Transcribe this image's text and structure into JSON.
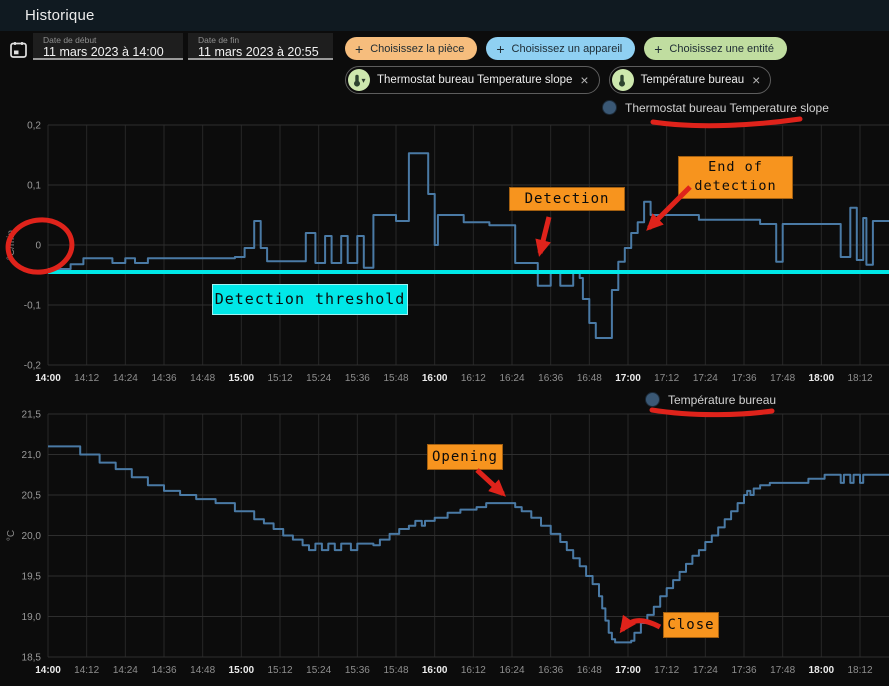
{
  "header": {
    "title": "Historique"
  },
  "filters": {
    "date_start": {
      "label": "Date de début",
      "value": "11 mars 2023 à 14:00"
    },
    "date_end": {
      "label": "Date de fin",
      "value": "11 mars 2023 à 20:55"
    },
    "add_chips": [
      {
        "label": "Choisissez la pièce",
        "color": "#f6bd7d"
      },
      {
        "label": "Choisissez un appareil",
        "color": "#8fd0f2"
      },
      {
        "label": "Choisissez une entité",
        "color": "#c0dda0"
      }
    ],
    "entity_chips": [
      {
        "label": "Thermostat bureau Temperature slope",
        "icon": "thermometer-icon",
        "close": "×"
      },
      {
        "label": "Température bureau",
        "icon": "thermometer-icon",
        "close": "×"
      }
    ]
  },
  "annotations": {
    "detection": "Detection",
    "end_of_detection": {
      "line1": "End of",
      "line2": "detection"
    },
    "threshold_label": "Detection threshold",
    "opening": "Opening",
    "close": "Close"
  },
  "colors": {
    "annotation_orange": "#f7941e",
    "annotation_cyan": "#00e8e8",
    "annotation_red": "#df231b",
    "series_blue": "#4a7aa5",
    "header_bg": "#101a21"
  },
  "chart_data": [
    {
      "type": "line",
      "step": true,
      "legend": "Thermostat bureau Temperature slope",
      "ylabel": "°C/min",
      "ylim": [
        -0.2,
        0.2
      ],
      "grid": true,
      "y_ticks": [
        {
          "v": 0.2,
          "label": "0,2"
        },
        {
          "v": 0.1,
          "label": "0,1"
        },
        {
          "v": 0.0,
          "label": "0"
        },
        {
          "v": -0.1,
          "label": "-0,1"
        },
        {
          "v": -0.2,
          "label": "-0,2"
        }
      ],
      "x_ticks": [
        {
          "t": 0,
          "label": "14:00"
        },
        {
          "t": 12,
          "label": "14:12"
        },
        {
          "t": 24,
          "label": "14:24"
        },
        {
          "t": 36,
          "label": "14:36"
        },
        {
          "t": 48,
          "label": "14:48"
        },
        {
          "t": 60,
          "label": "15:00"
        },
        {
          "t": 72,
          "label": "15:12"
        },
        {
          "t": 84,
          "label": "15:24"
        },
        {
          "t": 96,
          "label": "15:36"
        },
        {
          "t": 108,
          "label": "15:48"
        },
        {
          "t": 120,
          "label": "16:00"
        },
        {
          "t": 132,
          "label": "16:12"
        },
        {
          "t": 144,
          "label": "16:24"
        },
        {
          "t": 156,
          "label": "16:36"
        },
        {
          "t": 168,
          "label": "16:48"
        },
        {
          "t": 180,
          "label": "17:00"
        },
        {
          "t": 192,
          "label": "17:12"
        },
        {
          "t": 204,
          "label": "17:24"
        },
        {
          "t": 216,
          "label": "17:36"
        },
        {
          "t": 228,
          "label": "17:48"
        },
        {
          "t": 240,
          "label": "18:00"
        },
        {
          "t": 252,
          "label": "18:12"
        }
      ],
      "threshold": {
        "value": -0.045,
        "color": "#00e8e8",
        "name": "detection-threshold"
      },
      "series": [
        {
          "name": "Thermostat bureau Temperature slope",
          "color": "#4a7aa5",
          "points": [
            [
              0,
              -0.04
            ],
            [
              7,
              -0.032
            ],
            [
              11,
              -0.022
            ],
            [
              20,
              -0.03
            ],
            [
              24,
              -0.022
            ],
            [
              27,
              -0.03
            ],
            [
              31,
              -0.022
            ],
            [
              58,
              -0.02
            ],
            [
              61,
              -0.005
            ],
            [
              64,
              0.04
            ],
            [
              66,
              -0.005
            ],
            [
              68,
              -0.027
            ],
            [
              78,
              -0.027
            ],
            [
              80,
              0.02
            ],
            [
              83,
              -0.03
            ],
            [
              86,
              0.015
            ],
            [
              88,
              -0.03
            ],
            [
              91,
              0.015
            ],
            [
              93,
              -0.03
            ],
            [
              96,
              0.015
            ],
            [
              98,
              -0.038
            ],
            [
              101,
              0.05
            ],
            [
              108,
              0.04
            ],
            [
              112,
              0.153
            ],
            [
              118,
              0.085
            ],
            [
              120,
              0.0
            ],
            [
              121,
              0.05
            ],
            [
              129,
              0.038
            ],
            [
              137,
              0.033
            ],
            [
              145,
              -0.03
            ],
            [
              152,
              -0.068
            ],
            [
              156,
              -0.045
            ],
            [
              159,
              -0.068
            ],
            [
              163,
              -0.045
            ],
            [
              165,
              -0.055
            ],
            [
              166,
              -0.09
            ],
            [
              168,
              -0.13
            ],
            [
              170,
              -0.155
            ],
            [
              175,
              -0.075
            ],
            [
              177,
              -0.028
            ],
            [
              179,
              -0.005
            ],
            [
              181,
              0.02
            ],
            [
              183,
              0.038
            ],
            [
              185,
              0.072
            ],
            [
              187,
              0.05
            ],
            [
              202,
              0.042
            ],
            [
              221,
              0.035
            ],
            [
              226,
              -0.028
            ],
            [
              228,
              0.035
            ],
            [
              246,
              -0.02
            ],
            [
              249,
              0.062
            ],
            [
              251,
              -0.025
            ],
            [
              253,
              0.045
            ],
            [
              254,
              -0.033
            ],
            [
              256,
              0.04
            ]
          ]
        }
      ]
    },
    {
      "type": "line",
      "step": true,
      "legend": "Température bureau",
      "ylabel": "°C",
      "ylim": [
        18.5,
        21.5
      ],
      "grid": true,
      "y_ticks": [
        {
          "v": 21.5,
          "label": "21,5"
        },
        {
          "v": 21.0,
          "label": "21,0"
        },
        {
          "v": 20.5,
          "label": "20,5"
        },
        {
          "v": 20.0,
          "label": "20,0"
        },
        {
          "v": 19.5,
          "label": "19,5"
        },
        {
          "v": 19.0,
          "label": "19,0"
        },
        {
          "v": 18.5,
          "label": "18,5"
        }
      ],
      "x_ticks": [
        {
          "t": 0,
          "label": "14:00"
        },
        {
          "t": 12,
          "label": "14:12"
        },
        {
          "t": 24,
          "label": "14:24"
        },
        {
          "t": 36,
          "label": "14:36"
        },
        {
          "t": 48,
          "label": "14:48"
        },
        {
          "t": 60,
          "label": "15:00"
        },
        {
          "t": 72,
          "label": "15:12"
        },
        {
          "t": 84,
          "label": "15:24"
        },
        {
          "t": 96,
          "label": "15:36"
        },
        {
          "t": 108,
          "label": "15:48"
        },
        {
          "t": 120,
          "label": "16:00"
        },
        {
          "t": 132,
          "label": "16:12"
        },
        {
          "t": 144,
          "label": "16:24"
        },
        {
          "t": 156,
          "label": "16:36"
        },
        {
          "t": 168,
          "label": "16:48"
        },
        {
          "t": 180,
          "label": "17:00"
        },
        {
          "t": 192,
          "label": "17:12"
        },
        {
          "t": 204,
          "label": "17:24"
        },
        {
          "t": 216,
          "label": "17:36"
        },
        {
          "t": 228,
          "label": "17:48"
        },
        {
          "t": 240,
          "label": "18:00"
        },
        {
          "t": 252,
          "label": "18:12"
        }
      ],
      "series": [
        {
          "name": "Température bureau",
          "color": "#4a7aa5",
          "points": [
            [
              0,
              21.1
            ],
            [
              10,
              21.0
            ],
            [
              16,
              20.9
            ],
            [
              21,
              20.82
            ],
            [
              26,
              20.72
            ],
            [
              31,
              20.62
            ],
            [
              36,
              20.55
            ],
            [
              41,
              20.5
            ],
            [
              46,
              20.45
            ],
            [
              52,
              20.4
            ],
            [
              58,
              20.3
            ],
            [
              64,
              20.2
            ],
            [
              67,
              20.15
            ],
            [
              70,
              20.08
            ],
            [
              73,
              20.0
            ],
            [
              76,
              19.95
            ],
            [
              79,
              19.88
            ],
            [
              81,
              19.82
            ],
            [
              83,
              19.9
            ],
            [
              85,
              19.82
            ],
            [
              87,
              19.9
            ],
            [
              89,
              19.82
            ],
            [
              91,
              19.9
            ],
            [
              94,
              19.82
            ],
            [
              96,
              19.9
            ],
            [
              101,
              19.88
            ],
            [
              103,
              19.95
            ],
            [
              106,
              20.02
            ],
            [
              109,
              20.08
            ],
            [
              112,
              20.12
            ],
            [
              114,
              20.18
            ],
            [
              116,
              20.12
            ],
            [
              117,
              20.18
            ],
            [
              120,
              20.22
            ],
            [
              124,
              20.28
            ],
            [
              128,
              20.32
            ],
            [
              133,
              20.35
            ],
            [
              136,
              20.4
            ],
            [
              145,
              20.35
            ],
            [
              147,
              20.3
            ],
            [
              150,
              20.22
            ],
            [
              153,
              20.12
            ],
            [
              156,
              20.02
            ],
            [
              159,
              19.92
            ],
            [
              161,
              19.82
            ],
            [
              163,
              19.72
            ],
            [
              165,
              19.62
            ],
            [
              167,
              19.5
            ],
            [
              169,
              19.4
            ],
            [
              171,
              19.25
            ],
            [
              172,
              19.1
            ],
            [
              173,
              18.95
            ],
            [
              174,
              18.8
            ],
            [
              175,
              18.72
            ],
            [
              176,
              18.68
            ],
            [
              181,
              18.7
            ],
            [
              182,
              18.8
            ],
            [
              184,
              18.92
            ],
            [
              186,
              19.02
            ],
            [
              188,
              19.12
            ],
            [
              190,
              19.25
            ],
            [
              192,
              19.35
            ],
            [
              194,
              19.45
            ],
            [
              196,
              19.55
            ],
            [
              198,
              19.65
            ],
            [
              200,
              19.75
            ],
            [
              202,
              19.82
            ],
            [
              204,
              19.92
            ],
            [
              206,
              20.0
            ],
            [
              208,
              20.1
            ],
            [
              210,
              20.2
            ],
            [
              212,
              20.3
            ],
            [
              214,
              20.4
            ],
            [
              216,
              20.5
            ],
            [
              217,
              20.55
            ],
            [
              218,
              20.5
            ],
            [
              219,
              20.58
            ],
            [
              221,
              20.62
            ],
            [
              224,
              20.65
            ],
            [
              236,
              20.7
            ],
            [
              241,
              20.75
            ],
            [
              246,
              20.65
            ],
            [
              247,
              20.75
            ],
            [
              249,
              20.65
            ],
            [
              250,
              20.75
            ],
            [
              252,
              20.65
            ],
            [
              253,
              20.75
            ]
          ]
        }
      ]
    }
  ]
}
